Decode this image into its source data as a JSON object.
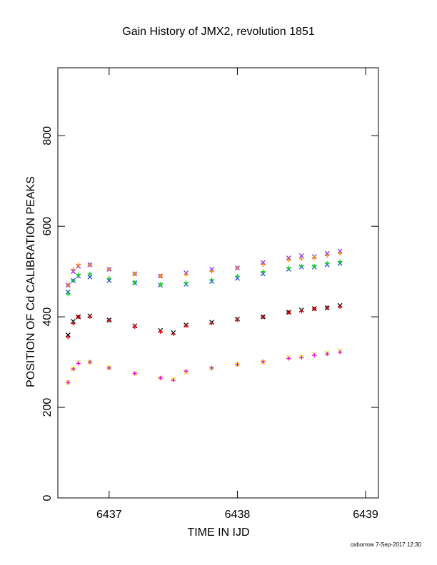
{
  "chart_data": {
    "type": "scatter",
    "title": "Gain History of JMX2, revolution 1851",
    "xlabel": "TIME IN IJD",
    "ylabel": "POSITION OF Cd CALIBRATION PEAKS",
    "xlim": [
      6436.6,
      6439.1
    ],
    "ylim": [
      0,
      950
    ],
    "x_ticks": [
      6437,
      6438,
      6439
    ],
    "x_tick_labels": [
      "6437",
      "6438",
      "6439"
    ],
    "y_ticks": [
      0,
      200,
      400,
      600,
      800
    ],
    "y_tick_labels": [
      "0",
      "200",
      "400",
      "600",
      "800"
    ],
    "grid": false,
    "legend": "none",
    "series": [
      {
        "marker": "x",
        "color": "#8a2be2",
        "x": [
          6436.68,
          6436.72,
          6436.76,
          6436.85,
          6437.0,
          6437.2,
          6437.4,
          6437.6,
          6437.8,
          6438.0,
          6438.2,
          6438.4,
          6438.5,
          6438.6,
          6438.7,
          6438.8
        ],
        "y": [
          470,
          500,
          512,
          515,
          505,
          495,
          490,
          497,
          505,
          508,
          520,
          530,
          535,
          533,
          540,
          545
        ]
      },
      {
        "marker": "+",
        "color": "#ff8c00",
        "x": [
          6436.68,
          6436.72,
          6436.76,
          6436.85,
          6437.0,
          6437.2,
          6437.4,
          6437.6,
          6437.8,
          6438.0,
          6438.2,
          6438.4,
          6438.5,
          6438.6,
          6438.7,
          6438.8
        ],
        "y": [
          470,
          505,
          515,
          515,
          505,
          495,
          490,
          493,
          500,
          508,
          515,
          525,
          528,
          530,
          535,
          540
        ]
      },
      {
        "marker": "x",
        "color": "#1a4fd6",
        "x": [
          6436.68,
          6436.72,
          6436.76,
          6436.85,
          6437.0,
          6437.2,
          6437.4,
          6437.6,
          6437.8,
          6438.0,
          6438.2,
          6438.4,
          6438.5,
          6438.6,
          6438.7,
          6438.8
        ],
        "y": [
          455,
          480,
          490,
          488,
          480,
          475,
          470,
          472,
          478,
          485,
          495,
          505,
          510,
          510,
          515,
          518
        ]
      },
      {
        "marker": "+",
        "color": "#00dd00",
        "x": [
          6436.68,
          6436.72,
          6436.76,
          6436.85,
          6437.0,
          6437.2,
          6437.4,
          6437.6,
          6437.8,
          6438.0,
          6438.2,
          6438.4,
          6438.5,
          6438.6,
          6438.7,
          6438.8
        ],
        "y": [
          450,
          480,
          493,
          495,
          485,
          476,
          472,
          475,
          482,
          490,
          500,
          508,
          512,
          512,
          518,
          522
        ]
      },
      {
        "marker": "x",
        "color": "#000000",
        "x": [
          6436.68,
          6436.72,
          6436.76,
          6436.85,
          6437.0,
          6437.2,
          6437.4,
          6437.5,
          6437.6,
          6437.8,
          6438.0,
          6438.2,
          6438.4,
          6438.5,
          6438.6,
          6438.7,
          6438.8
        ],
        "y": [
          360,
          390,
          400,
          402,
          393,
          380,
          370,
          365,
          382,
          388,
          395,
          400,
          410,
          415,
          418,
          420,
          425
        ]
      },
      {
        "marker": "+",
        "color": "#ee0000",
        "x": [
          6436.68,
          6436.72,
          6436.76,
          6436.85,
          6437.0,
          6437.2,
          6437.4,
          6437.5,
          6437.6,
          6437.8,
          6438.0,
          6438.2,
          6438.4,
          6438.5,
          6438.6,
          6438.7,
          6438.8
        ],
        "y": [
          355,
          385,
          400,
          400,
          392,
          378,
          367,
          362,
          380,
          386,
          393,
          400,
          410,
          412,
          418,
          420,
          422
        ]
      },
      {
        "marker": "x",
        "color": "#e6e600",
        "x": [
          6436.68,
          6436.72,
          6436.76,
          6436.85,
          6437.0,
          6437.2,
          6437.4,
          6437.5,
          6437.6,
          6437.8,
          6438.0,
          6438.2,
          6438.4,
          6438.5,
          6438.6,
          6438.7,
          6438.8
        ],
        "y": [
          255,
          285,
          300,
          300,
          288,
          275,
          265,
          262,
          278,
          286,
          295,
          300,
          310,
          312,
          318,
          320,
          325
        ]
      },
      {
        "marker": "+",
        "color": "#ee00ee",
        "x": [
          6436.68,
          6436.72,
          6436.76,
          6436.85,
          6437.0,
          6437.2,
          6437.4,
          6437.5,
          6437.6,
          6437.8,
          6438.0,
          6438.2,
          6438.4,
          6438.5,
          6438.6,
          6438.7,
          6438.8
        ],
        "y": [
          255,
          285,
          297,
          300,
          287,
          275,
          265,
          260,
          280,
          287,
          295,
          301,
          308,
          310,
          315,
          318,
          322
        ]
      }
    ]
  },
  "footer": {
    "credit": "oxborrow  7-Sep-2017 12:30"
  }
}
